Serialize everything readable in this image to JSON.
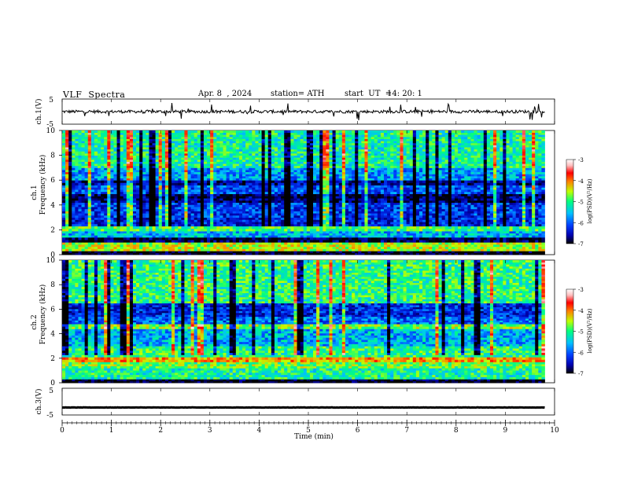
{
  "header": {
    "title": "VLF  Spectra",
    "date": "Apr. 8  , 2024",
    "station": "station= ATH",
    "start_label": "start  UT  =",
    "start_value": "14: 20: 1"
  },
  "chart_data": [
    {
      "type": "line",
      "name": "ch1-waveform",
      "ylabel": "ch.1(V)",
      "ylim": [
        -5,
        5
      ],
      "yticks": [
        "5",
        "-5"
      ],
      "xlim": [
        0,
        9.8
      ],
      "baseline": 0,
      "amplitude_typical": 0.6,
      "amplitude_spike_max": 3.5
    },
    {
      "type": "heatmap",
      "name": "ch1-spectrogram",
      "ylabel_channel": "ch.1",
      "ylabel": "Frequency  (kHz)",
      "ylim": [
        0,
        10
      ],
      "yticks": [
        "0",
        "2",
        "4",
        "6",
        "8",
        "10"
      ],
      "xlim": [
        0,
        9.8
      ],
      "bands_khz": [
        {
          "from": 0.0,
          "to": 0.3,
          "level": -7
        },
        {
          "from": 0.3,
          "to": 1.0,
          "level": -4.8
        },
        {
          "from": 1.0,
          "to": 1.4,
          "level": -6.8
        },
        {
          "from": 1.4,
          "to": 1.9,
          "level": -5.7
        },
        {
          "from": 1.9,
          "to": 2.3,
          "level": -5.1
        },
        {
          "from": 2.3,
          "to": 3.0,
          "level": -6.3
        },
        {
          "from": 3.0,
          "to": 4.2,
          "level": -6.2
        },
        {
          "from": 4.2,
          "to": 4.9,
          "level": -6.7
        },
        {
          "from": 4.9,
          "to": 5.6,
          "level": -6.1
        },
        {
          "from": 5.6,
          "to": 6.0,
          "level": -6.6
        },
        {
          "from": 6.0,
          "to": 7.0,
          "level": -5.8
        },
        {
          "from": 7.0,
          "to": 10.0,
          "level": -5.3
        }
      ],
      "colorbar": {
        "label": "log(PSD)(V²/Hz)",
        "ticks": [
          "-3",
          "-4",
          "-5",
          "-6",
          "-7"
        ],
        "range": [
          -7,
          -3
        ]
      }
    },
    {
      "type": "heatmap",
      "name": "ch2-spectrogram",
      "ylabel_channel": "ch.2",
      "ylabel": "Frequency  (kHz)",
      "ylim": [
        0,
        10
      ],
      "yticks": [
        "0",
        "2",
        "4",
        "6",
        "8",
        "10"
      ],
      "xlim": [
        0,
        9.8
      ],
      "bands_khz": [
        {
          "from": 0.0,
          "to": 0.3,
          "level": -7
        },
        {
          "from": 0.3,
          "to": 1.2,
          "level": -5.3
        },
        {
          "from": 1.2,
          "to": 1.7,
          "level": -5.0
        },
        {
          "from": 1.7,
          "to": 2.1,
          "level": -4.4
        },
        {
          "from": 2.1,
          "to": 3.0,
          "level": -5.2
        },
        {
          "from": 3.0,
          "to": 4.4,
          "level": -5.7
        },
        {
          "from": 4.4,
          "to": 4.8,
          "level": -4.9
        },
        {
          "from": 4.8,
          "to": 5.4,
          "level": -6.0
        },
        {
          "from": 5.4,
          "to": 6.5,
          "level": -6.3
        },
        {
          "from": 6.5,
          "to": 10.0,
          "level": -5.2
        }
      ],
      "colorbar": {
        "label": "log(PSD)(V²/Hz)",
        "ticks": [
          "-3",
          "-4",
          "-5",
          "-6",
          "-7"
        ],
        "range": [
          -7,
          -3
        ]
      }
    },
    {
      "type": "line",
      "name": "ch3-waveform",
      "ylabel": "ch.3(V)",
      "ylim": [
        -5,
        5
      ],
      "yticks": [
        "5",
        "-5"
      ],
      "xlim": [
        0,
        9.8
      ],
      "baseline": -2.2,
      "amplitude_typical": 0.05
    }
  ],
  "x_axis": {
    "xlabel": "Time  (min)",
    "range": [
      0,
      10
    ],
    "ticks": [
      "0",
      "1",
      "2",
      "3",
      "4",
      "5",
      "6",
      "7",
      "8",
      "9",
      "10"
    ]
  },
  "colors": {
    "colormap": [
      "#000000",
      "#0000b0",
      "#0040ff",
      "#00c0ff",
      "#00ff80",
      "#c0ff00",
      "#ff8000",
      "#ff0000",
      "#ffc0c0",
      "#ffffff"
    ]
  }
}
